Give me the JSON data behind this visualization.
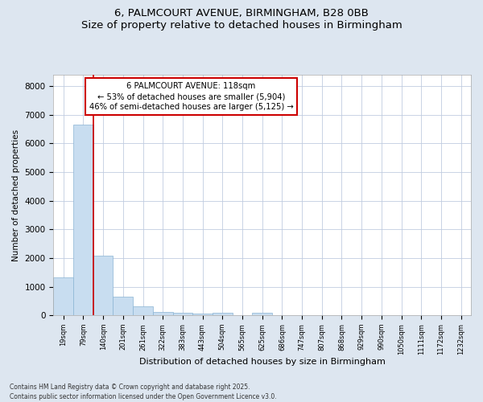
{
  "title_line1": "6, PALMCOURT AVENUE, BIRMINGHAM, B28 0BB",
  "title_line2": "Size of property relative to detached houses in Birmingham",
  "xlabel": "Distribution of detached houses by size in Birmingham",
  "ylabel": "Number of detached properties",
  "categories": [
    "19sqm",
    "79sqm",
    "140sqm",
    "201sqm",
    "261sqm",
    "322sqm",
    "383sqm",
    "443sqm",
    "504sqm",
    "565sqm",
    "625sqm",
    "686sqm",
    "747sqm",
    "807sqm",
    "868sqm",
    "929sqm",
    "990sqm",
    "1050sqm",
    "1111sqm",
    "1172sqm",
    "1232sqm"
  ],
  "values": [
    1310,
    6670,
    2080,
    650,
    300,
    120,
    80,
    60,
    80,
    0,
    80,
    0,
    0,
    0,
    0,
    0,
    0,
    0,
    0,
    0,
    0
  ],
  "bar_color": "#c8ddf0",
  "bar_edge_color": "#8ab4d4",
  "bar_linewidth": 0.5,
  "vline_x": 2,
  "vline_color": "#cc0000",
  "vline_linewidth": 1.2,
  "annotation_text": "6 PALMCOURT AVENUE: 118sqm\n← 53% of detached houses are smaller (5,904)\n46% of semi-detached houses are larger (5,125) →",
  "annotation_box_color": "#cc0000",
  "ylim": [
    0,
    8400
  ],
  "yticks": [
    0,
    1000,
    2000,
    3000,
    4000,
    5000,
    6000,
    7000,
    8000
  ],
  "bg_color": "#dde6f0",
  "plot_bg_color": "#ffffff",
  "grid_color": "#c0cce0",
  "footnote": "Contains HM Land Registry data © Crown copyright and database right 2025.\nContains public sector information licensed under the Open Government Licence v3.0."
}
